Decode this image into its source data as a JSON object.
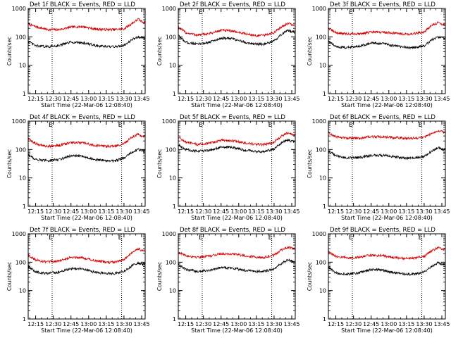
{
  "chart_data": [
    {
      "type": "line",
      "title": "Det 1f BLACK = Events, RED = LLD",
      "xlabel": "Start Time (22-Mar-06 12:08:40)",
      "ylabel": "Counts/sec",
      "yscale": "log",
      "ylim": [
        1,
        1000
      ],
      "xlim": [
        "12:08:40",
        "13:48:00"
      ],
      "x_ticks": [
        "12:15",
        "12:30",
        "12:45",
        "13:00",
        "13:15",
        "13:30",
        "13:45"
      ],
      "y_ticks": [
        "1",
        "10",
        "100",
        "1000"
      ],
      "markers": [
        {
          "label": "E",
          "time": "12:29"
        },
        {
          "label": "E",
          "time": "13:28"
        }
      ],
      "series": [
        {
          "color": "#d00000",
          "x": [
            "12:08:40",
            "12:15",
            "12:25",
            "12:35",
            "12:45",
            "12:55",
            "13:05",
            "13:15",
            "13:22",
            "13:30",
            "13:37",
            "13:42",
            "13:46"
          ],
          "values": [
            280,
            230,
            180,
            180,
            220,
            230,
            190,
            180,
            180,
            190,
            300,
            420,
            330
          ]
        },
        {
          "color": "#000000",
          "x": [
            "12:08:40",
            "12:15",
            "12:25",
            "12:35",
            "12:45",
            "12:55",
            "13:05",
            "13:15",
            "13:22",
            "13:30",
            "13:37",
            "13:42",
            "13:46"
          ],
          "values": [
            70,
            48,
            45,
            50,
            65,
            62,
            50,
            45,
            45,
            50,
            80,
            100,
            90
          ]
        }
      ]
    },
    {
      "type": "line",
      "title": "Det 2f BLACK = Events, RED = LLD",
      "xlabel": "Start Time (22-Mar-06 12:08:40)",
      "ylabel": "Counts/sec",
      "yscale": "log",
      "ylim": [
        1,
        1000
      ],
      "xlim": [
        "12:08:40",
        "13:48:00"
      ],
      "x_ticks": [
        "12:15",
        "12:30",
        "12:45",
        "13:00",
        "13:15",
        "13:30",
        "13:45"
      ],
      "y_ticks": [
        "1",
        "10",
        "100",
        "1000"
      ],
      "markers": [
        {
          "label": "E",
          "time": "12:29"
        },
        {
          "label": "E",
          "time": "13:28"
        }
      ],
      "series": [
        {
          "color": "#d00000",
          "x": [
            "12:08:40",
            "12:15",
            "12:25",
            "12:35",
            "12:45",
            "12:55",
            "13:05",
            "13:15",
            "13:22",
            "13:30",
            "13:37",
            "13:42",
            "13:46"
          ],
          "values": [
            220,
            140,
            115,
            130,
            170,
            160,
            130,
            110,
            115,
            140,
            240,
            300,
            260
          ]
        },
        {
          "color": "#000000",
          "x": [
            "12:08:40",
            "12:15",
            "12:25",
            "12:35",
            "12:45",
            "12:55",
            "13:05",
            "13:15",
            "13:22",
            "13:30",
            "13:37",
            "13:42",
            "13:46"
          ],
          "values": [
            110,
            65,
            55,
            65,
            90,
            85,
            65,
            55,
            55,
            70,
            130,
            170,
            150
          ]
        }
      ]
    },
    {
      "type": "line",
      "title": "Det 3f BLACK = Events, RED = LLD",
      "xlabel": "Start Time (22-Mar-06 12:08:40)",
      "ylabel": "Counts/sec",
      "yscale": "log",
      "ylim": [
        1,
        1000
      ],
      "xlim": [
        "12:08:40",
        "13:48:00"
      ],
      "x_ticks": [
        "12:15",
        "12:30",
        "12:45",
        "13:00",
        "13:15",
        "13:30",
        "13:45"
      ],
      "y_ticks": [
        "1",
        "10",
        "100",
        "1000"
      ],
      "markers": [
        {
          "label": "E",
          "time": "12:29"
        },
        {
          "label": "E",
          "time": "13:28"
        }
      ],
      "series": [
        {
          "color": "#d00000",
          "x": [
            "12:08:40",
            "12:15",
            "12:25",
            "12:35",
            "12:45",
            "12:55",
            "13:05",
            "13:15",
            "13:22",
            "13:30",
            "13:37",
            "13:42",
            "13:46"
          ],
          "values": [
            200,
            140,
            125,
            130,
            145,
            145,
            135,
            125,
            130,
            150,
            260,
            320,
            270
          ]
        },
        {
          "color": "#000000",
          "x": [
            "12:08:40",
            "12:15",
            "12:25",
            "12:35",
            "12:45",
            "12:55",
            "13:05",
            "13:15",
            "13:22",
            "13:30",
            "13:37",
            "13:42",
            "13:46"
          ],
          "values": [
            70,
            45,
            42,
            48,
            60,
            58,
            48,
            42,
            42,
            48,
            80,
            100,
            90
          ]
        }
      ]
    },
    {
      "type": "line",
      "title": "Det 4f BLACK = Events, RED = LLD",
      "xlabel": "Start Time (22-Mar-06 12:08:40)",
      "ylabel": "Counts/sec",
      "yscale": "log",
      "ylim": [
        1,
        1000
      ],
      "xlim": [
        "12:08:40",
        "13:48:00"
      ],
      "x_ticks": [
        "12:15",
        "12:30",
        "12:45",
        "13:00",
        "13:15",
        "13:30",
        "13:45"
      ],
      "y_ticks": [
        "1",
        "10",
        "100",
        "1000"
      ],
      "markers": [
        {
          "label": "E",
          "time": "12:29"
        },
        {
          "label": "E",
          "time": "13:28"
        }
      ],
      "series": [
        {
          "color": "#d00000",
          "x": [
            "12:08:40",
            "12:15",
            "12:25",
            "12:35",
            "12:45",
            "12:55",
            "13:05",
            "13:15",
            "13:22",
            "13:30",
            "13:37",
            "13:42",
            "13:46"
          ],
          "values": [
            240,
            160,
            130,
            140,
            175,
            170,
            140,
            130,
            130,
            160,
            280,
            340,
            290
          ]
        },
        {
          "color": "#000000",
          "x": [
            "12:08:40",
            "12:15",
            "12:25",
            "12:35",
            "12:45",
            "12:55",
            "13:05",
            "13:15",
            "13:22",
            "13:30",
            "13:37",
            "13:42",
            "13:46"
          ],
          "values": [
            65,
            45,
            40,
            45,
            60,
            58,
            45,
            40,
            40,
            50,
            80,
            100,
            90
          ]
        }
      ]
    },
    {
      "type": "line",
      "title": "Det 5f BLACK = Events, RED = LLD",
      "xlabel": "Start Time (22-Mar-06 12:08:40)",
      "ylabel": "Counts/sec",
      "yscale": "log",
      "ylim": [
        1,
        1000
      ],
      "xlim": [
        "12:08:40",
        "13:48:00"
      ],
      "x_ticks": [
        "12:15",
        "12:30",
        "12:45",
        "13:00",
        "13:15",
        "13:30",
        "13:45"
      ],
      "y_ticks": [
        "1",
        "10",
        "100",
        "1000"
      ],
      "markers": [
        {
          "label": "E",
          "time": "12:29"
        },
        {
          "label": "E",
          "time": "13:28"
        }
      ],
      "series": [
        {
          "color": "#d00000",
          "x": [
            "12:08:40",
            "12:15",
            "12:25",
            "12:35",
            "12:45",
            "12:55",
            "13:05",
            "13:15",
            "13:22",
            "13:30",
            "13:37",
            "13:42",
            "13:46"
          ],
          "values": [
            280,
            180,
            150,
            165,
            210,
            205,
            170,
            150,
            150,
            180,
            310,
            390,
            330
          ]
        },
        {
          "color": "#000000",
          "x": [
            "12:08:40",
            "12:15",
            "12:25",
            "12:35",
            "12:45",
            "12:55",
            "13:05",
            "13:15",
            "13:22",
            "13:30",
            "13:37",
            "13:42",
            "13:46"
          ],
          "values": [
            150,
            100,
            85,
            95,
            120,
            118,
            95,
            85,
            85,
            105,
            180,
            220,
            190
          ]
        }
      ]
    },
    {
      "type": "line",
      "title": "Det 6f BLACK = Events, RED = LLD",
      "xlabel": "Start Time (22-Mar-06 12:08:40)",
      "ylabel": "Counts/sec",
      "yscale": "log",
      "ylim": [
        1,
        1000
      ],
      "xlim": [
        "12:08:40",
        "13:48:00"
      ],
      "x_ticks": [
        "12:15",
        "12:30",
        "12:45",
        "13:00",
        "13:15",
        "13:30",
        "13:45"
      ],
      "y_ticks": [
        "1",
        "10",
        "100",
        "1000"
      ],
      "markers": [
        {
          "label": "E",
          "time": "12:29"
        },
        {
          "label": "E",
          "time": "13:28"
        }
      ],
      "series": [
        {
          "color": "#d00000",
          "x": [
            "12:08:40",
            "12:15",
            "12:25",
            "12:35",
            "12:45",
            "12:55",
            "13:05",
            "13:15",
            "13:22",
            "13:30",
            "13:37",
            "13:42",
            "13:46"
          ],
          "values": [
            380,
            280,
            250,
            250,
            280,
            280,
            260,
            250,
            250,
            270,
            380,
            460,
            420
          ]
        },
        {
          "color": "#000000",
          "x": [
            "12:08:40",
            "12:15",
            "12:25",
            "12:35",
            "12:45",
            "12:55",
            "13:05",
            "13:15",
            "13:22",
            "13:30",
            "13:37",
            "13:42",
            "13:46"
          ],
          "values": [
            90,
            60,
            50,
            52,
            62,
            62,
            55,
            50,
            50,
            58,
            90,
            120,
            100
          ]
        }
      ]
    },
    {
      "type": "line",
      "title": "Det 7f BLACK = Events, RED = LLD",
      "xlabel": "Start Time (22-Mar-06 12:08:40)",
      "ylabel": "Counts/sec",
      "yscale": "log",
      "ylim": [
        1,
        1000
      ],
      "xlim": [
        "12:08:40",
        "13:48:00"
      ],
      "x_ticks": [
        "12:15",
        "12:30",
        "12:45",
        "13:00",
        "13:15",
        "13:30",
        "13:45"
      ],
      "y_ticks": [
        "1",
        "10",
        "100",
        "1000"
      ],
      "markers": [
        {
          "label": "E",
          "time": "12:29"
        },
        {
          "label": "E",
          "time": "13:28"
        }
      ],
      "series": [
        {
          "color": "#d00000",
          "x": [
            "12:08:40",
            "12:15",
            "12:25",
            "12:35",
            "12:45",
            "12:55",
            "13:05",
            "13:15",
            "13:22",
            "13:30",
            "13:37",
            "13:42",
            "13:46"
          ],
          "values": [
            180,
            120,
            100,
            110,
            150,
            145,
            115,
            100,
            100,
            120,
            220,
            300,
            250
          ]
        },
        {
          "color": "#000000",
          "x": [
            "12:08:40",
            "12:15",
            "12:25",
            "12:35",
            "12:45",
            "12:55",
            "13:05",
            "13:15",
            "13:22",
            "13:30",
            "13:37",
            "13:42",
            "13:46"
          ],
          "values": [
            70,
            45,
            40,
            45,
            60,
            58,
            45,
            40,
            40,
            48,
            75,
            95,
            85
          ]
        }
      ]
    },
    {
      "type": "line",
      "title": "Det 8f BLACK = Events, RED = LLD",
      "xlabel": "Start Time (22-Mar-06 12:08:40)",
      "ylabel": "Counts/sec",
      "yscale": "log",
      "ylim": [
        1,
        1000
      ],
      "xlim": [
        "12:08:40",
        "13:48:00"
      ],
      "x_ticks": [
        "12:15",
        "12:30",
        "12:45",
        "13:00",
        "13:15",
        "13:30",
        "13:45"
      ],
      "y_ticks": [
        "1",
        "10",
        "100",
        "1000"
      ],
      "markers": [
        {
          "label": "E",
          "time": "12:29"
        },
        {
          "label": "E",
          "time": "13:28"
        }
      ],
      "series": [
        {
          "color": "#d00000",
          "x": [
            "12:08:40",
            "12:15",
            "12:25",
            "12:35",
            "12:45",
            "12:55",
            "13:05",
            "13:15",
            "13:22",
            "13:30",
            "13:37",
            "13:42",
            "13:46"
          ],
          "values": [
            230,
            170,
            150,
            165,
            200,
            195,
            170,
            150,
            150,
            175,
            280,
            340,
            300
          ]
        },
        {
          "color": "#000000",
          "x": [
            "12:08:40",
            "12:15",
            "12:25",
            "12:35",
            "12:45",
            "12:55",
            "13:05",
            "13:15",
            "13:22",
            "13:30",
            "13:37",
            "13:42",
            "13:46"
          ],
          "values": [
            85,
            55,
            48,
            52,
            65,
            62,
            52,
            48,
            48,
            58,
            95,
            120,
            105
          ]
        }
      ]
    },
    {
      "type": "line",
      "title": "Det 9f BLACK = Events, RED = LLD",
      "xlabel": "Start Time (22-Mar-06 12:08:40)",
      "ylabel": "Counts/sec",
      "yscale": "log",
      "ylim": [
        1,
        1000
      ],
      "xlim": [
        "12:08:40",
        "13:48:00"
      ],
      "x_ticks": [
        "12:15",
        "12:30",
        "12:45",
        "13:00",
        "13:15",
        "13:30",
        "13:45"
      ],
      "y_ticks": [
        "1",
        "10",
        "100",
        "1000"
      ],
      "markers": [
        {
          "label": "E",
          "time": "12:29"
        },
        {
          "label": "E",
          "time": "13:28"
        }
      ],
      "series": [
        {
          "color": "#d00000",
          "x": [
            "12:08:40",
            "12:15",
            "12:25",
            "12:35",
            "12:45",
            "12:55",
            "13:05",
            "13:15",
            "13:22",
            "13:30",
            "13:37",
            "13:42",
            "13:46"
          ],
          "values": [
            230,
            160,
            140,
            150,
            175,
            170,
            145,
            135,
            135,
            160,
            260,
            320,
            280
          ]
        },
        {
          "color": "#000000",
          "x": [
            "12:08:40",
            "12:15",
            "12:25",
            "12:35",
            "12:45",
            "12:55",
            "13:05",
            "13:15",
            "13:22",
            "13:30",
            "13:37",
            "13:42",
            "13:46"
          ],
          "values": [
            65,
            42,
            38,
            42,
            55,
            52,
            42,
            38,
            38,
            45,
            75,
            95,
            85
          ]
        }
      ]
    }
  ]
}
